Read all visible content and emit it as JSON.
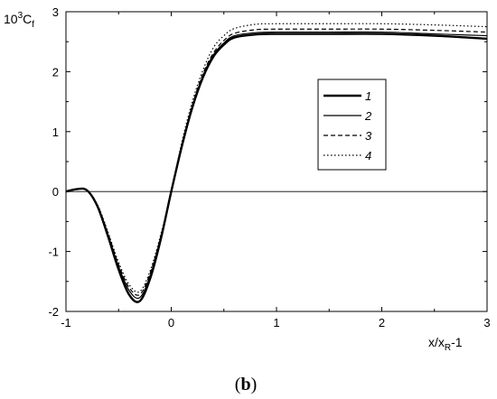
{
  "chart_data": {
    "type": "line",
    "panel_label_open": "(",
    "panel_label_letter": "b",
    "panel_label_close": ")",
    "xlabel_main": "x/x",
    "xlabel_sub": "R",
    "xlabel_tail": "-1",
    "ylabel_base": "10",
    "ylabel_exp": "3",
    "ylabel_main": "C",
    "ylabel_sub": "f",
    "xlim": [
      -1,
      3
    ],
    "ylim": [
      -2,
      3
    ],
    "x_ticks": [
      -1,
      0,
      1,
      2,
      3
    ],
    "y_ticks": [
      -2,
      -1,
      0,
      1,
      2,
      3
    ],
    "x_tick_labels": [
      "-1",
      "0",
      "1",
      "2",
      "3"
    ],
    "y_tick_labels": [
      "-2",
      "-1",
      "0",
      "1",
      "2",
      "3"
    ],
    "zero_line": true,
    "grid": false,
    "legend_position": "right",
    "series": [
      {
        "name": "1",
        "style": "solid-bold",
        "x": [
          -1.0,
          -0.9,
          -0.8,
          -0.7,
          -0.6,
          -0.5,
          -0.4,
          -0.3,
          -0.2,
          -0.1,
          0.0,
          0.1,
          0.2,
          0.3,
          0.4,
          0.5,
          0.6,
          0.8,
          1.0,
          1.5,
          2.0,
          2.5,
          3.0
        ],
        "y": [
          0.0,
          0.04,
          0.02,
          -0.25,
          -0.75,
          -1.3,
          -1.72,
          -1.83,
          -1.45,
          -0.8,
          0.0,
          0.75,
          1.4,
          1.9,
          2.25,
          2.45,
          2.57,
          2.62,
          2.63,
          2.63,
          2.63,
          2.6,
          2.55
        ]
      },
      {
        "name": "2",
        "style": "solid",
        "x": [
          -1.0,
          -0.9,
          -0.8,
          -0.7,
          -0.6,
          -0.5,
          -0.4,
          -0.3,
          -0.2,
          -0.1,
          0.0,
          0.1,
          0.2,
          0.3,
          0.4,
          0.5,
          0.6,
          0.8,
          1.0,
          1.5,
          2.0,
          2.5,
          3.0
        ],
        "y": [
          0.0,
          0.04,
          0.02,
          -0.24,
          -0.72,
          -1.25,
          -1.65,
          -1.77,
          -1.4,
          -0.77,
          0.0,
          0.77,
          1.42,
          1.93,
          2.28,
          2.48,
          2.6,
          2.65,
          2.66,
          2.66,
          2.66,
          2.63,
          2.6
        ]
      },
      {
        "name": "3",
        "style": "dashed",
        "x": [
          -1.0,
          -0.9,
          -0.8,
          -0.7,
          -0.6,
          -0.5,
          -0.4,
          -0.3,
          -0.2,
          -0.1,
          0.0,
          0.1,
          0.2,
          0.3,
          0.4,
          0.5,
          0.6,
          0.8,
          1.0,
          1.5,
          2.0,
          2.5,
          3.0
        ],
        "y": [
          0.0,
          0.04,
          0.02,
          -0.23,
          -0.7,
          -1.22,
          -1.6,
          -1.72,
          -1.36,
          -0.75,
          0.0,
          0.78,
          1.44,
          1.96,
          2.31,
          2.52,
          2.64,
          2.7,
          2.71,
          2.71,
          2.71,
          2.69,
          2.66
        ]
      },
      {
        "name": "4",
        "style": "dotted",
        "x": [
          -1.0,
          -0.9,
          -0.8,
          -0.7,
          -0.6,
          -0.5,
          -0.4,
          -0.3,
          -0.2,
          -0.1,
          0.0,
          0.1,
          0.2,
          0.3,
          0.4,
          0.5,
          0.6,
          0.8,
          1.0,
          1.5,
          2.0,
          2.5,
          3.0
        ],
        "y": [
          0.0,
          0.04,
          0.02,
          -0.22,
          -0.68,
          -1.18,
          -1.55,
          -1.67,
          -1.32,
          -0.72,
          0.0,
          0.82,
          1.5,
          2.02,
          2.4,
          2.6,
          2.72,
          2.79,
          2.8,
          2.8,
          2.8,
          2.78,
          2.75
        ]
      }
    ]
  }
}
